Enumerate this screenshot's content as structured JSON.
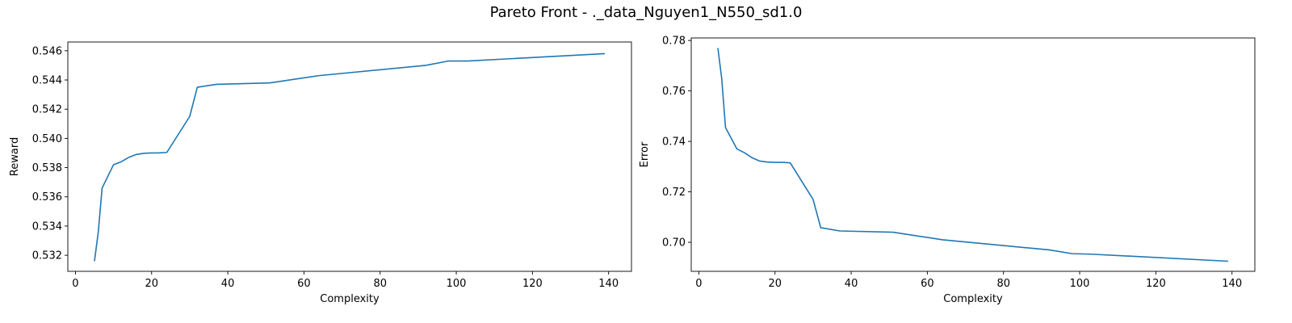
{
  "title": "Pareto Front - ._data_Nguyen1_N550_sd1.0",
  "chart_data": [
    {
      "type": "line",
      "xlabel": "Complexity",
      "ylabel": "Reward",
      "xlim": [
        -2,
        146
      ],
      "ylim": [
        0.5309,
        0.5466
      ],
      "xticks": [
        0,
        20,
        40,
        60,
        80,
        100,
        120,
        140
      ],
      "yticks": [
        0.532,
        0.534,
        0.536,
        0.538,
        0.54,
        0.542,
        0.544,
        0.546
      ],
      "ytick_labels": [
        "0.532",
        "0.534",
        "0.536",
        "0.538",
        "0.540",
        "0.542",
        "0.544",
        "0.546"
      ],
      "color": "#1f77b4",
      "x": [
        5,
        6,
        7,
        10,
        12,
        14,
        16,
        18,
        20,
        22,
        24,
        30,
        32,
        37,
        51,
        64,
        92,
        98,
        103,
        139
      ],
      "y": [
        0.5316,
        0.5336,
        0.5366,
        0.5382,
        0.5384,
        0.5387,
        0.5389,
        0.53898,
        0.539,
        0.53901,
        0.53904,
        0.5415,
        0.5435,
        0.5437,
        0.5438,
        0.5443,
        0.545,
        0.5453,
        0.5453,
        0.5458
      ]
    },
    {
      "type": "line",
      "xlabel": "Complexity",
      "ylabel": "Error",
      "xlim": [
        -2,
        146
      ],
      "ylim": [
        0.6885,
        0.781
      ],
      "xticks": [
        0,
        20,
        40,
        60,
        80,
        100,
        120,
        140
      ],
      "yticks": [
        0.7,
        0.72,
        0.74,
        0.76,
        0.78
      ],
      "ytick_labels": [
        "0.70",
        "0.72",
        "0.74",
        "0.76",
        "0.78"
      ],
      "color": "#1f77b4",
      "x": [
        5,
        6,
        7,
        10,
        12,
        14,
        16,
        18,
        20,
        22,
        24,
        30,
        32,
        37,
        51,
        64,
        92,
        98,
        103,
        139
      ],
      "y": [
        0.777,
        0.765,
        0.7455,
        0.737,
        0.7355,
        0.7335,
        0.7322,
        0.7318,
        0.7317,
        0.7317,
        0.7315,
        0.717,
        0.7058,
        0.7045,
        0.704,
        0.701,
        0.697,
        0.6955,
        0.6953,
        0.6925
      ]
    }
  ]
}
